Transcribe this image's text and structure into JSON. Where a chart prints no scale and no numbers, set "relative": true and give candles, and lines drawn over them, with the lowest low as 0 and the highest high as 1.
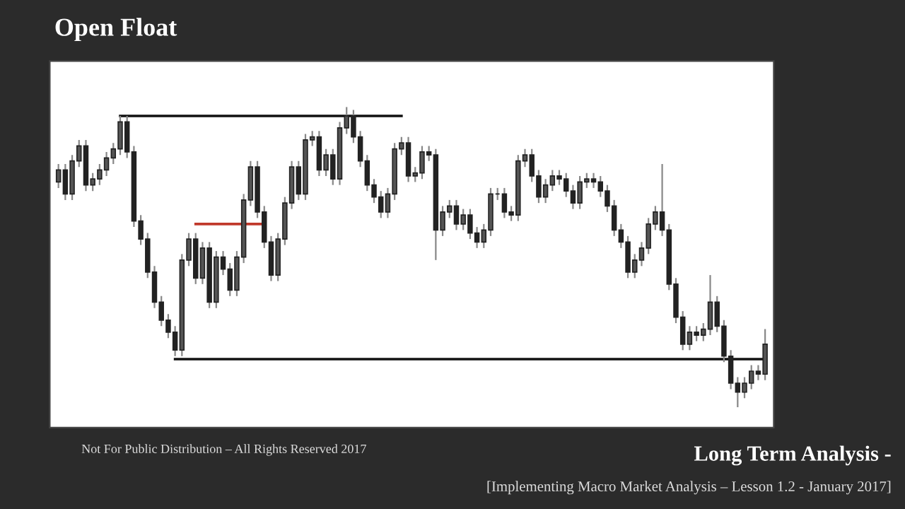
{
  "chart_data": {
    "type": "candlestick",
    "title": "Open Float",
    "subtitle": "Long Term Analysis -",
    "annotations": [
      "[Implementing Macro Market Analysis – Lesson 1.2 - January 2017]",
      "Not For Public Distribution – All Rights Reserved 2017"
    ],
    "relative": true,
    "grid": false,
    "color": "#222222",
    "categories": [
      null,
      null,
      null,
      null,
      null,
      null,
      null,
      null,
      null,
      null,
      null,
      null,
      null,
      null,
      null,
      null,
      null,
      null,
      null,
      null,
      null,
      null,
      null,
      null,
      null,
      null,
      null,
      null,
      null,
      null,
      null,
      null,
      null,
      null,
      null,
      null,
      null,
      null,
      null,
      null,
      null,
      null,
      null,
      null,
      null,
      null,
      null,
      null,
      null,
      null,
      null,
      null,
      null,
      null,
      null,
      null,
      null,
      null,
      null,
      null,
      null,
      null,
      null,
      null,
      null,
      null,
      null,
      null,
      null,
      null,
      null,
      null,
      null,
      null,
      null,
      null,
      null,
      null,
      null,
      null,
      null,
      null,
      null,
      null,
      null,
      null,
      null,
      null,
      null,
      null,
      null,
      null,
      null,
      null,
      null,
      null,
      null,
      null,
      null,
      null,
      null,
      null,
      null,
      null
    ],
    "ohlc": [
      [
        0.75,
        0.81,
        0.73,
        0.79
      ],
      [
        0.79,
        0.81,
        0.69,
        0.71
      ],
      [
        0.71,
        0.84,
        0.69,
        0.82
      ],
      [
        0.82,
        0.89,
        0.8,
        0.87
      ],
      [
        0.87,
        0.89,
        0.72,
        0.74
      ],
      [
        0.74,
        0.78,
        0.72,
        0.76
      ],
      [
        0.76,
        0.81,
        0.74,
        0.79
      ],
      [
        0.79,
        0.85,
        0.77,
        0.83
      ],
      [
        0.83,
        0.88,
        0.81,
        0.86
      ],
      [
        0.86,
        0.97,
        0.84,
        0.95
      ],
      [
        0.95,
        0.97,
        0.83,
        0.85
      ],
      [
        0.85,
        0.87,
        0.6,
        0.62
      ],
      [
        0.62,
        0.64,
        0.54,
        0.56
      ],
      [
        0.56,
        0.58,
        0.43,
        0.45
      ],
      [
        0.45,
        0.47,
        0.33,
        0.35
      ],
      [
        0.35,
        0.37,
        0.27,
        0.29
      ],
      [
        0.29,
        0.31,
        0.23,
        0.25
      ],
      [
        0.25,
        0.27,
        0.17,
        0.19
      ],
      [
        0.19,
        0.51,
        0.17,
        0.49
      ],
      [
        0.49,
        0.58,
        0.47,
        0.56
      ],
      [
        0.56,
        0.58,
        0.41,
        0.43
      ],
      [
        0.43,
        0.55,
        0.41,
        0.53
      ],
      [
        0.53,
        0.55,
        0.33,
        0.35
      ],
      [
        0.35,
        0.52,
        0.33,
        0.5
      ],
      [
        0.5,
        0.52,
        0.44,
        0.46
      ],
      [
        0.46,
        0.48,
        0.37,
        0.39
      ],
      [
        0.39,
        0.52,
        0.37,
        0.5
      ],
      [
        0.5,
        0.71,
        0.48,
        0.69
      ],
      [
        0.69,
        0.82,
        0.67,
        0.8
      ],
      [
        0.8,
        0.82,
        0.63,
        0.65
      ],
      [
        0.65,
        0.67,
        0.53,
        0.55
      ],
      [
        0.55,
        0.57,
        0.42,
        0.44
      ],
      [
        0.44,
        0.58,
        0.42,
        0.56
      ],
      [
        0.56,
        0.7,
        0.54,
        0.68
      ],
      [
        0.68,
        0.82,
        0.66,
        0.8
      ],
      [
        0.8,
        0.82,
        0.69,
        0.71
      ],
      [
        0.71,
        0.91,
        0.69,
        0.89
      ],
      [
        0.89,
        0.92,
        0.87,
        0.9
      ],
      [
        0.9,
        0.92,
        0.77,
        0.79
      ],
      [
        0.79,
        0.86,
        0.77,
        0.84
      ],
      [
        0.84,
        0.86,
        0.74,
        0.76
      ],
      [
        0.76,
        0.95,
        0.74,
        0.93
      ],
      [
        0.93,
        1.0,
        0.91,
        0.97
      ],
      [
        0.97,
        0.99,
        0.88,
        0.9
      ],
      [
        0.9,
        0.92,
        0.8,
        0.82
      ],
      [
        0.82,
        0.84,
        0.72,
        0.74
      ],
      [
        0.74,
        0.76,
        0.68,
        0.7
      ],
      [
        0.7,
        0.72,
        0.63,
        0.65
      ],
      [
        0.65,
        0.73,
        0.63,
        0.71
      ],
      [
        0.71,
        0.88,
        0.69,
        0.86
      ],
      [
        0.86,
        0.9,
        0.84,
        0.88
      ],
      [
        0.88,
        0.9,
        0.75,
        0.77
      ],
      [
        0.77,
        0.8,
        0.75,
        0.78
      ],
      [
        0.78,
        0.87,
        0.76,
        0.85
      ],
      [
        0.85,
        0.87,
        0.82,
        0.84
      ],
      [
        0.84,
        0.86,
        0.49,
        0.59
      ],
      [
        0.59,
        0.67,
        0.57,
        0.65
      ],
      [
        0.65,
        0.69,
        0.63,
        0.67
      ],
      [
        0.67,
        0.69,
        0.59,
        0.61
      ],
      [
        0.61,
        0.66,
        0.59,
        0.64
      ],
      [
        0.64,
        0.66,
        0.56,
        0.58
      ],
      [
        0.58,
        0.6,
        0.53,
        0.55
      ],
      [
        0.55,
        0.61,
        0.53,
        0.59
      ],
      [
        0.59,
        0.73,
        0.57,
        0.71
      ],
      [
        0.71,
        0.73,
        0.69,
        0.71
      ],
      [
        0.71,
        0.73,
        0.63,
        0.65
      ],
      [
        0.65,
        0.67,
        0.62,
        0.64
      ],
      [
        0.64,
        0.84,
        0.62,
        0.82
      ],
      [
        0.82,
        0.86,
        0.8,
        0.84
      ],
      [
        0.84,
        0.86,
        0.75,
        0.77
      ],
      [
        0.77,
        0.79,
        0.68,
        0.7
      ],
      [
        0.7,
        0.76,
        0.68,
        0.74
      ],
      [
        0.74,
        0.79,
        0.72,
        0.77
      ],
      [
        0.77,
        0.79,
        0.74,
        0.76
      ],
      [
        0.76,
        0.78,
        0.7,
        0.72
      ],
      [
        0.72,
        0.74,
        0.66,
        0.68
      ],
      [
        0.68,
        0.77,
        0.66,
        0.75
      ],
      [
        0.75,
        0.78,
        0.73,
        0.76
      ],
      [
        0.76,
        0.78,
        0.73,
        0.75
      ],
      [
        0.75,
        0.77,
        0.7,
        0.72
      ],
      [
        0.72,
        0.74,
        0.65,
        0.67
      ],
      [
        0.67,
        0.69,
        0.57,
        0.59
      ],
      [
        0.59,
        0.61,
        0.53,
        0.55
      ],
      [
        0.55,
        0.57,
        0.43,
        0.45
      ],
      [
        0.45,
        0.51,
        0.43,
        0.49
      ],
      [
        0.49,
        0.55,
        0.47,
        0.53
      ],
      [
        0.53,
        0.63,
        0.51,
        0.61
      ],
      [
        0.61,
        0.67,
        0.59,
        0.65
      ],
      [
        0.65,
        0.81,
        0.57,
        0.59
      ],
      [
        0.59,
        0.61,
        0.39,
        0.41
      ],
      [
        0.41,
        0.43,
        0.28,
        0.3
      ],
      [
        0.3,
        0.32,
        0.19,
        0.21
      ],
      [
        0.21,
        0.27,
        0.19,
        0.25
      ],
      [
        0.25,
        0.27,
        0.22,
        0.24
      ],
      [
        0.24,
        0.28,
        0.22,
        0.26
      ],
      [
        0.26,
        0.44,
        0.24,
        0.35
      ],
      [
        0.35,
        0.37,
        0.25,
        0.27
      ],
      [
        0.27,
        0.29,
        0.15,
        0.17
      ],
      [
        0.17,
        0.19,
        0.06,
        0.08
      ],
      [
        0.08,
        0.1,
        0.0,
        0.05
      ],
      [
        0.05,
        0.1,
        0.03,
        0.08
      ],
      [
        0.08,
        0.14,
        0.06,
        0.12
      ],
      [
        0.12,
        0.14,
        0.09,
        0.11
      ],
      [
        0.11,
        0.26,
        0.09,
        0.21
      ]
    ],
    "series": [
      {
        "type": "line",
        "color": "#111111",
        "values": [
          null,
          null,
          null,
          null,
          null,
          null,
          null,
          null,
          null,
          0.97,
          0.97,
          0.97,
          0.97,
          0.97,
          0.97,
          0.97,
          0.97,
          0.97,
          0.97,
          0.97,
          0.97,
          0.97,
          0.97,
          0.97,
          0.97,
          0.97,
          0.97,
          0.97,
          0.97,
          0.97,
          0.97,
          0.97,
          0.97,
          0.97,
          0.97,
          0.97,
          0.97,
          0.97,
          0.97,
          0.97,
          0.97,
          0.97,
          0.97,
          0.97,
          0.97,
          0.97,
          0.97,
          0.97,
          0.97,
          0.97,
          0.97,
          null,
          null,
          null,
          null,
          null,
          null,
          null,
          null,
          null,
          null,
          null,
          null,
          null,
          null,
          null,
          null,
          null,
          null,
          null,
          null,
          null,
          null,
          null,
          null,
          null,
          null,
          null,
          null,
          null,
          null,
          null,
          null,
          null,
          null,
          null,
          null,
          null,
          null,
          null,
          null,
          null,
          null,
          null,
          null,
          null,
          null,
          null,
          null,
          null,
          null,
          null,
          null,
          null
        ]
      },
      {
        "type": "line",
        "color": "#c0392b",
        "values": [
          null,
          null,
          null,
          null,
          null,
          null,
          null,
          null,
          null,
          null,
          null,
          null,
          null,
          null,
          null,
          null,
          null,
          null,
          null,
          null,
          0.61,
          0.61,
          0.61,
          0.61,
          0.61,
          0.61,
          0.61,
          0.61,
          0.61,
          0.61,
          0.61,
          null,
          null,
          null,
          null,
          null,
          null,
          null,
          null,
          null,
          null,
          null,
          null,
          null,
          null,
          null,
          null,
          null,
          null,
          null,
          null,
          null,
          null,
          null,
          null,
          null,
          null,
          null,
          null,
          null,
          null,
          null,
          null,
          null,
          null,
          null,
          null,
          null,
          null,
          null,
          null,
          null,
          null,
          null,
          null,
          null,
          null,
          null,
          null,
          null,
          null,
          null,
          null,
          null,
          null,
          null,
          null,
          null,
          null,
          null,
          null,
          null,
          null,
          null,
          null,
          null,
          null,
          null,
          null,
          null,
          null,
          null,
          null,
          null
        ]
      },
      {
        "type": "line",
        "color": "#111111",
        "values": [
          null,
          null,
          null,
          null,
          null,
          null,
          null,
          null,
          null,
          null,
          null,
          null,
          null,
          null,
          null,
          null,
          null,
          0.16,
          0.16,
          0.16,
          0.16,
          0.16,
          0.16,
          0.16,
          0.16,
          0.16,
          0.16,
          0.16,
          0.16,
          0.16,
          0.16,
          0.16,
          0.16,
          0.16,
          0.16,
          0.16,
          0.16,
          0.16,
          0.16,
          0.16,
          0.16,
          0.16,
          0.16,
          0.16,
          0.16,
          0.16,
          0.16,
          0.16,
          0.16,
          0.16,
          0.16,
          0.16,
          0.16,
          0.16,
          0.16,
          0.16,
          0.16,
          0.16,
          0.16,
          0.16,
          0.16,
          0.16,
          0.16,
          0.16,
          0.16,
          0.16,
          0.16,
          0.16,
          0.16,
          0.16,
          0.16,
          0.16,
          0.16,
          0.16,
          0.16,
          0.16,
          0.16,
          0.16,
          0.16,
          0.16,
          0.16,
          0.16,
          0.16,
          0.16,
          0.16,
          0.16,
          0.16,
          0.16,
          0.16,
          0.16,
          0.16,
          0.16,
          0.16,
          0.16,
          0.16,
          0.16,
          0.16,
          0.16,
          0.16,
          0.16,
          0.16,
          0.16,
          0.16,
          0.16
        ]
      }
    ]
  }
}
